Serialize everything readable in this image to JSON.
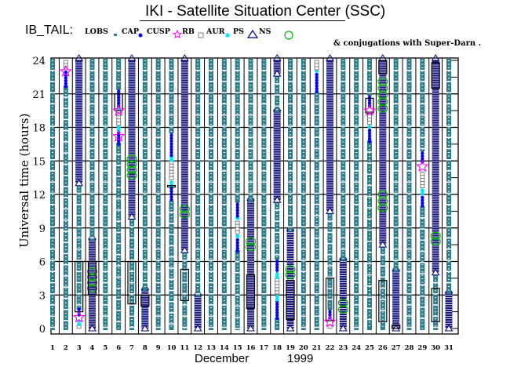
{
  "title": "IKI - Satellite Situation Center (SSC)",
  "legend_prefix": "IB_TAIL:",
  "legend": [
    {
      "label": "LOBS",
      "symbol": "lobs",
      "color": "#2e7d8a"
    },
    {
      "label": "CAP",
      "symbol": "dot",
      "color": "#0000ff"
    },
    {
      "label": "CUSP",
      "symbol": "star",
      "color": "#ff00ff"
    },
    {
      "label": "RB",
      "symbol": "square",
      "color": "#808080"
    },
    {
      "label": "AUR",
      "symbol": "asterisk",
      "color": "#00e5ff"
    },
    {
      "label": "PS",
      "symbol": "triangle",
      "color": "#000080"
    },
    {
      "label": "NS",
      "symbol": "circle",
      "color": "#00c000"
    }
  ],
  "conjugations_note": "& conjugations with Super-Darn .",
  "chart_data": {
    "type": "scatter",
    "title": "IKI - Satellite Situation Center (SSC)",
    "xlabel_month": "December",
    "xlabel_year": "1999",
    "ylabel": "Universal time (hours)",
    "xlim": [
      1,
      31
    ],
    "ylim": [
      0,
      24
    ],
    "x_ticks": [
      "1",
      "2",
      "3",
      "4",
      "5",
      "6",
      "7",
      "8",
      "9",
      "10",
      "11",
      "12",
      "13",
      "14",
      "15",
      "16",
      "17",
      "18",
      "19",
      "20",
      "21",
      "22",
      "23",
      "24",
      "25",
      "26",
      "27",
      "28",
      "29",
      "30",
      "31"
    ],
    "y_ticks": [
      "0",
      "3",
      "6",
      "9",
      "12",
      "15",
      "18",
      "21",
      "24"
    ],
    "grid": true,
    "days": [
      {
        "day": 1,
        "segments": [
          {
            "type": "LOBS",
            "from": 0,
            "to": 24
          }
        ]
      },
      {
        "day": 2,
        "segments": [
          {
            "type": "LOBS",
            "from": 0,
            "to": 21.6
          },
          {
            "type": "CAP",
            "from": 21.6,
            "to": 23
          },
          {
            "type": "RB",
            "from": 23.2,
            "to": 24
          }
        ],
        "stars": [
          23
        ],
        "circles": [],
        "rects": []
      },
      {
        "day": 3,
        "segments": [
          {
            "type": "RB",
            "from": 0,
            "to": 0.3
          },
          {
            "type": "AUR",
            "from": 0.3,
            "to": 0.8
          },
          {
            "type": "LOBS",
            "from": 1.8,
            "to": 13
          },
          {
            "type": "CAP",
            "from": 1.1,
            "to": 1.8
          },
          {
            "type": "NS",
            "from": 13,
            "to": 24
          }
        ],
        "stars": [
          1
        ],
        "rects": [
          [
            1.5,
            6
          ]
        ]
      },
      {
        "day": 4,
        "segments": [
          {
            "type": "NS",
            "from": 0,
            "to": 8
          },
          {
            "type": "LOBS",
            "from": 8,
            "to": 24
          }
        ],
        "circles": [
          3.6,
          4.1,
          4.6,
          5.1
        ],
        "rects": [
          [
            3,
            6
          ]
        ]
      },
      {
        "day": 5,
        "segments": [
          {
            "type": "LOBS",
            "from": 0,
            "to": 24
          }
        ]
      },
      {
        "day": 6,
        "segments": [
          {
            "type": "LOBS",
            "from": 0,
            "to": 16.5
          },
          {
            "type": "CAP",
            "from": 16.5,
            "to": 17.6
          },
          {
            "type": "AUR",
            "from": 17.6,
            "to": 18.2
          },
          {
            "type": "RB",
            "from": 18.2,
            "to": 19.6
          },
          {
            "type": "AUR",
            "from": 19.6,
            "to": 19.9
          },
          {
            "type": "CAP",
            "from": 19.9,
            "to": 21.5
          },
          {
            "type": "LOBS",
            "from": 21.5,
            "to": 24
          }
        ],
        "stars": [
          17.2,
          19.5
        ],
        "rects": [
          [
            19.5,
            21
          ]
        ]
      },
      {
        "day": 7,
        "segments": [
          {
            "type": "LOBS",
            "from": 0,
            "to": 10
          },
          {
            "type": "NS",
            "from": 10,
            "to": 24
          }
        ],
        "circles": [
          13.7,
          14.2,
          14.7,
          15.2
        ],
        "rects": [
          [
            2.2,
            6
          ]
        ]
      },
      {
        "day": 8,
        "segments": [
          {
            "type": "NS",
            "from": 0,
            "to": 3.5
          },
          {
            "type": "LOBS",
            "from": 3.5,
            "to": 24
          }
        ],
        "rects": [
          [
            2,
            3
          ]
        ]
      },
      {
        "day": 9,
        "segments": [
          {
            "type": "LOBS",
            "from": 0,
            "to": 24
          }
        ]
      },
      {
        "day": 10,
        "segments": [
          {
            "type": "LOBS",
            "from": 0,
            "to": 11.3
          },
          {
            "type": "CAP",
            "from": 11.3,
            "to": 12.6
          },
          {
            "type": "AUR",
            "from": 12.6,
            "to": 13.2
          },
          {
            "type": "RB",
            "from": 13.2,
            "to": 15
          },
          {
            "type": "AUR",
            "from": 15,
            "to": 15.5
          },
          {
            "type": "CAP",
            "from": 15.5,
            "to": 17.6
          },
          {
            "type": "LOBS",
            "from": 17.6,
            "to": 24
          }
        ],
        "rects": [
          [
            12.8,
            12.8
          ]
        ]
      },
      {
        "day": 11,
        "segments": [
          {
            "type": "LOBS",
            "from": 0,
            "to": 7
          },
          {
            "type": "NS",
            "from": 7,
            "to": 24
          }
        ],
        "circles": [
          10.2,
          10.7
        ],
        "rects": [
          [
            2.5,
            5.3
          ]
        ]
      },
      {
        "day": 12,
        "segments": [
          {
            "type": "NS",
            "from": 0,
            "to": 3
          },
          {
            "type": "LOBS",
            "from": 3,
            "to": 24
          }
        ]
      },
      {
        "day": 13,
        "segments": [
          {
            "type": "LOBS",
            "from": 0,
            "to": 24
          }
        ]
      },
      {
        "day": 14,
        "segments": [
          {
            "type": "LOBS",
            "from": 0,
            "to": 24
          }
        ]
      },
      {
        "day": 15,
        "segments": [
          {
            "type": "LOBS",
            "from": 0,
            "to": 6.9
          },
          {
            "type": "CAP",
            "from": 6.9,
            "to": 8
          },
          {
            "type": "AUR",
            "from": 8,
            "to": 8.4
          },
          {
            "type": "RB",
            "from": 8.4,
            "to": 9.6
          },
          {
            "type": "AUR",
            "from": 9.6,
            "to": 10
          },
          {
            "type": "CAP",
            "from": 10,
            "to": 11.4
          },
          {
            "type": "LOBS",
            "from": 11.4,
            "to": 24
          }
        ]
      },
      {
        "day": 16,
        "segments": [
          {
            "type": "NS",
            "from": 0,
            "to": 11.5
          },
          {
            "type": "LOBS",
            "from": 11.5,
            "to": 24
          }
        ],
        "circles": [
          7.3,
          7.8
        ],
        "rects": [
          [
            1.8,
            4.8
          ]
        ]
      },
      {
        "day": 17,
        "segments": [
          {
            "type": "LOBS",
            "from": 0,
            "to": 24
          }
        ]
      },
      {
        "day": 18,
        "segments": [
          {
            "type": "LOBS",
            "from": 0,
            "to": 0.8
          },
          {
            "type": "CAP",
            "from": 0.8,
            "to": 2.5
          },
          {
            "type": "AUR",
            "from": 2.5,
            "to": 3
          },
          {
            "type": "RB",
            "from": 3,
            "to": 4.5
          },
          {
            "type": "AUR",
            "from": 4.5,
            "to": 5
          },
          {
            "type": "CAP",
            "from": 5,
            "to": 6.3
          },
          {
            "type": "LOBS",
            "from": 6.3,
            "to": 11.5
          },
          {
            "type": "NS",
            "from": 11.5,
            "to": 19.5
          },
          {
            "type": "LOBS",
            "from": 19.5,
            "to": 22.8
          },
          {
            "type": "NS",
            "from": 22.8,
            "to": 24
          }
        ]
      },
      {
        "day": 19,
        "segments": [
          {
            "type": "NS",
            "from": 0,
            "to": 8.8
          },
          {
            "type": "LOBS",
            "from": 8.8,
            "to": 24
          }
        ],
        "circles": [
          4.8,
          5.3
        ],
        "rects": [
          [
            0.8,
            4.3
          ]
        ]
      },
      {
        "day": 20,
        "segments": [
          {
            "type": "LOBS",
            "from": 0,
            "to": 24
          }
        ]
      },
      {
        "day": 21,
        "segments": [
          {
            "type": "LOBS",
            "from": 0,
            "to": 21
          },
          {
            "type": "CAP",
            "from": 21,
            "to": 22.8
          },
          {
            "type": "AUR",
            "from": 22.8,
            "to": 23.2
          },
          {
            "type": "RB",
            "from": 23.2,
            "to": 24
          }
        ]
      },
      {
        "day": 22,
        "segments": [
          {
            "type": "RB",
            "from": 0,
            "to": 0.3
          },
          {
            "type": "CAP",
            "from": 0.8,
            "to": 1.8
          },
          {
            "type": "LOBS",
            "from": 1.8,
            "to": 10.5
          },
          {
            "type": "NS",
            "from": 10.5,
            "to": 24
          }
        ],
        "stars": [
          0.6
        ],
        "rects": [
          [
            0.7,
            4.5
          ]
        ]
      },
      {
        "day": 23,
        "segments": [
          {
            "type": "NS",
            "from": 0,
            "to": 6.2
          },
          {
            "type": "LOBS",
            "from": 6.2,
            "to": 24
          }
        ],
        "circles": [
          1.7,
          2.3
        ]
      },
      {
        "day": 24,
        "segments": [
          {
            "type": "LOBS",
            "from": 0,
            "to": 24
          }
        ]
      },
      {
        "day": 25,
        "segments": [
          {
            "type": "LOBS",
            "from": 0,
            "to": 16.7
          },
          {
            "type": "CAP",
            "from": 16.7,
            "to": 17.8
          },
          {
            "type": "AUR",
            "from": 17.8,
            "to": 18.2
          },
          {
            "type": "RB",
            "from": 18.2,
            "to": 19.4
          },
          {
            "type": "CAP",
            "from": 19.8,
            "to": 21
          },
          {
            "type": "LOBS",
            "from": 21,
            "to": 24
          }
        ],
        "stars": [
          19.5
        ],
        "rects": [
          [
            19.3,
            20.6
          ]
        ]
      },
      {
        "day": 26,
        "segments": [
          {
            "type": "LOBS",
            "from": 0,
            "to": 7.5
          },
          {
            "type": "NS",
            "from": 7.5,
            "to": 24
          }
        ],
        "circles": [
          10.8,
          11.4,
          12,
          19.7,
          20.3,
          20.9,
          21.5,
          22.1
        ],
        "rects": [
          [
            0.6,
            4.3
          ],
          [
            22.8,
            24
          ]
        ]
      },
      {
        "day": 27,
        "segments": [
          {
            "type": "NS",
            "from": 0,
            "to": 5.2
          },
          {
            "type": "LOBS",
            "from": 5.2,
            "to": 24
          }
        ],
        "rects": [
          [
            0,
            0.3
          ]
        ]
      },
      {
        "day": 28,
        "segments": [
          {
            "type": "LOBS",
            "from": 0,
            "to": 24
          }
        ]
      },
      {
        "day": 29,
        "segments": [
          {
            "type": "LOBS",
            "from": 0,
            "to": 10.8
          },
          {
            "type": "CAP",
            "from": 10.8,
            "to": 11.8
          },
          {
            "type": "AUR",
            "from": 11.8,
            "to": 12.5
          },
          {
            "type": "RB",
            "from": 12.5,
            "to": 14
          },
          {
            "type": "CAP",
            "from": 14.8,
            "to": 16
          },
          {
            "type": "LOBS",
            "from": 16,
            "to": 24
          }
        ],
        "stars": [
          14.5
        ]
      },
      {
        "day": 30,
        "segments": [
          {
            "type": "LOBS",
            "from": 0,
            "to": 5
          },
          {
            "type": "NS",
            "from": 5,
            "to": 24
          }
        ],
        "circles": [
          7.8,
          8.3
        ],
        "rects": [
          [
            0.6,
            3.6
          ],
          [
            21.5,
            23.8
          ]
        ]
      },
      {
        "day": 31,
        "segments": [
          {
            "type": "NS",
            "from": 0,
            "to": 3.2
          },
          {
            "type": "LOBS",
            "from": 3.2,
            "to": 24
          }
        ]
      }
    ]
  }
}
